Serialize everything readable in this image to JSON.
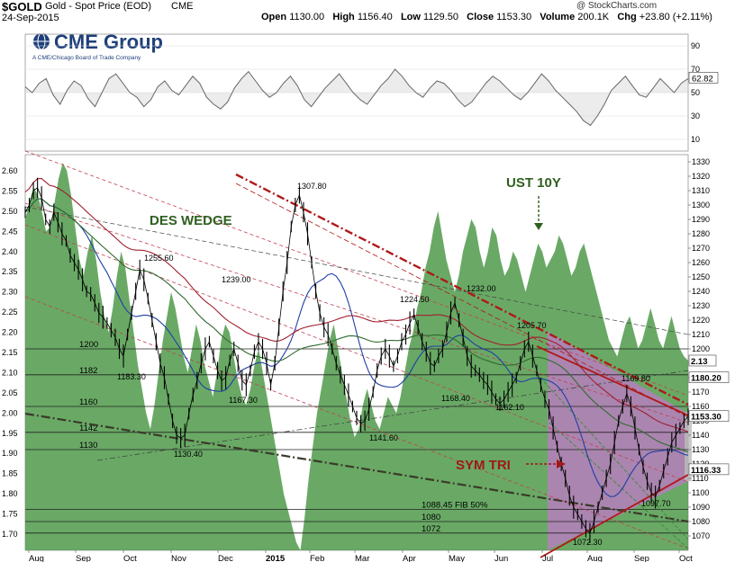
{
  "header": {
    "symbol": "$GOLD",
    "name": "Gold - Spot Price (EOD)",
    "exchange": "CME",
    "date": "24-Sep-2015",
    "open_label": "Open",
    "open": "1130.00",
    "high_label": "High",
    "high": "1156.40",
    "low_label": "Low",
    "low": "1129.50",
    "close_label": "Close",
    "close": "1153.30",
    "volume_label": "Volume",
    "volume": "200.1K",
    "chg_label": "Chg",
    "chg": "+23.80 (+2.11%)",
    "watermark": "@ StockCharts.com"
  },
  "logo": {
    "brand": "CME Group",
    "tagline": "A CME/Chicago Board of Trade Company"
  },
  "colors": {
    "price": "#000000",
    "yield_fill": "#4f9a4a",
    "ma_blue": "#1f3fa8",
    "ma_green": "#2f6b2f",
    "ma_red": "#a02030",
    "trend_dark": "#3a3a2a",
    "triangle_fill": "#c07ac8",
    "annotation_green": "#2f5f1f",
    "annotation_red": "#a01818"
  },
  "chart_data": [
    {
      "type": "line",
      "name": "rsi-panel",
      "yticks": [
        10,
        30,
        50,
        70,
        90
      ],
      "ylim": [
        0,
        100
      ],
      "last_value": "62.82",
      "series": [
        {
          "values": [
            55,
            50,
            58,
            62,
            48,
            40,
            52,
            60,
            56,
            45,
            38,
            50,
            62,
            66,
            58,
            50,
            46,
            38,
            44,
            55,
            60,
            52,
            48,
            56,
            64,
            58,
            46,
            40,
            36,
            42,
            54,
            62,
            68,
            60,
            52,
            46,
            50,
            58,
            64,
            56,
            44,
            38,
            46,
            54,
            60,
            66,
            58,
            50,
            44,
            40,
            48,
            56,
            62,
            70,
            64,
            56,
            50,
            46,
            54,
            60,
            58,
            52,
            44,
            38,
            42,
            50,
            58,
            64,
            60,
            54,
            48,
            44,
            50,
            58,
            66,
            60,
            52,
            46,
            40,
            34,
            26,
            22,
            30,
            40,
            52,
            58,
            64,
            56,
            48,
            46,
            54,
            62,
            56,
            50,
            58,
            62
          ]
        }
      ]
    },
    {
      "type": "line",
      "name": "price-panel",
      "x_labels": [
        "Aug",
        "Sep",
        "Oct",
        "Nov",
        "Dec",
        "2015",
        "Feb",
        "Mar",
        "Apr",
        "May",
        "Jun",
        "Jul",
        "Aug",
        "Sep",
        "Oct"
      ],
      "ylim": [
        1060,
        1335
      ],
      "yticks_right": [
        1070,
        1080,
        1090,
        1100,
        1110,
        1120,
        1130,
        1140,
        1150,
        1160,
        1170,
        1180,
        1190,
        1200,
        1210,
        1220,
        1230,
        1240,
        1250,
        1260,
        1270,
        1280,
        1290,
        1300,
        1310,
        1320,
        1330
      ],
      "yticks_left": [
        "2.60",
        "2.55",
        "2.50",
        "2.45",
        "2.40",
        "2.35",
        "2.30",
        "2.25",
        "2.20",
        "2.15",
        "2.10",
        "2.05",
        "2.00",
        "1.95",
        "1.90",
        "1.85",
        "1.80",
        "1.75",
        "1.70"
      ],
      "left_ylim": [
        1.66,
        2.64
      ],
      "last_close_label": "1153.30",
      "right_markers": [
        "1180.20",
        "1116.33"
      ],
      "left_marker": "2.13",
      "price": [
        1295,
        1300,
        1310,
        1312,
        1305,
        1290,
        1285,
        1295,
        1288,
        1280,
        1275,
        1265,
        1260,
        1255,
        1248,
        1240,
        1238,
        1232,
        1225,
        1222,
        1218,
        1213,
        1208,
        1200,
        1195,
        1210,
        1225,
        1240,
        1255,
        1248,
        1235,
        1220,
        1205,
        1190,
        1180,
        1165,
        1150,
        1140,
        1138,
        1140,
        1155,
        1168,
        1178,
        1190,
        1200,
        1205,
        1195,
        1185,
        1178,
        1180,
        1192,
        1200,
        1190,
        1178,
        1175,
        1185,
        1198,
        1205,
        1200,
        1190,
        1175,
        1190,
        1215,
        1240,
        1260,
        1285,
        1300,
        1307,
        1295,
        1280,
        1260,
        1240,
        1225,
        1215,
        1210,
        1200,
        1190,
        1182,
        1175,
        1168,
        1160,
        1152,
        1148,
        1150,
        1158,
        1170,
        1185,
        1195,
        1200,
        1195,
        1188,
        1195,
        1205,
        1210,
        1218,
        1224,
        1215,
        1205,
        1198,
        1190,
        1188,
        1195,
        1200,
        1212,
        1225,
        1232,
        1220,
        1208,
        1195,
        1188,
        1185,
        1182,
        1178,
        1175,
        1170,
        1165,
        1162,
        1165,
        1170,
        1175,
        1180,
        1190,
        1200,
        1205,
        1195,
        1185,
        1175,
        1165,
        1158,
        1145,
        1132,
        1120,
        1110,
        1098,
        1090,
        1085,
        1080,
        1075,
        1072,
        1080,
        1090,
        1100,
        1110,
        1120,
        1135,
        1150,
        1160,
        1169,
        1160,
        1145,
        1130,
        1118,
        1108,
        1100,
        1097,
        1105,
        1115,
        1125,
        1135,
        1140,
        1145,
        1150,
        1153
      ],
      "yield": [
        2.48,
        2.52,
        2.56,
        2.54,
        2.5,
        2.45,
        2.46,
        2.52,
        2.58,
        2.62,
        2.6,
        2.54,
        2.46,
        2.38,
        2.34,
        2.4,
        2.44,
        2.38,
        2.3,
        2.24,
        2.2,
        2.26,
        2.34,
        2.4,
        2.36,
        2.28,
        2.2,
        2.12,
        2.06,
        2.0,
        1.96,
        2.02,
        2.1,
        2.18,
        2.24,
        2.3,
        2.26,
        2.2,
        2.14,
        2.1,
        2.16,
        2.22,
        2.18,
        2.12,
        2.08,
        2.04,
        2.1,
        2.18,
        2.22,
        2.2,
        2.14,
        2.08,
        2.04,
        2.02,
        2.06,
        2.12,
        2.16,
        2.1,
        2.04,
        1.98,
        1.92,
        1.86,
        1.8,
        1.76,
        1.72,
        1.68,
        1.66,
        1.74,
        1.84,
        1.92,
        2.0,
        2.06,
        2.12,
        2.18,
        2.22,
        2.16,
        2.1,
        2.04,
        1.98,
        1.94,
        1.96,
        2.02,
        2.06,
        2.02,
        1.98,
        1.96,
        2.0,
        2.04,
        2.02,
        2.0,
        2.04,
        2.1,
        2.16,
        2.2,
        2.26,
        2.3,
        2.36,
        2.4,
        2.46,
        2.5,
        2.44,
        2.38,
        2.34,
        2.3,
        2.34,
        2.4,
        2.44,
        2.48,
        2.46,
        2.4,
        2.36,
        2.4,
        2.46,
        2.44,
        2.38,
        2.34,
        2.36,
        2.4,
        2.38,
        2.34,
        2.3,
        2.34,
        2.38,
        2.42,
        2.4,
        2.36,
        2.38,
        2.4,
        2.44,
        2.42,
        2.38,
        2.34,
        2.36,
        2.4,
        2.42,
        2.38,
        2.34,
        2.3,
        2.26,
        2.22,
        2.18,
        2.16,
        2.14,
        2.18,
        2.22,
        2.24,
        2.2,
        2.16,
        2.18,
        2.22,
        2.26,
        2.22,
        2.18,
        2.16,
        2.2,
        2.24,
        2.2,
        2.16,
        2.14,
        2.13
      ]
    }
  ],
  "price_annotations": [
    {
      "label": "1307.80",
      "value": 1307.8
    },
    {
      "label": "1255.60",
      "value": 1255.6
    },
    {
      "label": "1239.00",
      "value": 1239.0
    },
    {
      "label": "1232.00",
      "value": 1232.0
    },
    {
      "label": "1224.50",
      "value": 1224.5
    },
    {
      "label": "1205.70",
      "value": 1205.7
    },
    {
      "label": "1183.30",
      "value": 1183.3
    },
    {
      "label": "1169.80",
      "value": 1169.8
    },
    {
      "label": "1168.40",
      "value": 1168.4
    },
    {
      "label": "1167.30",
      "value": 1167.3
    },
    {
      "label": "1162.10",
      "value": 1162.1
    },
    {
      "label": "1141.60",
      "value": 1141.6
    },
    {
      "label": "1130.40",
      "value": 1130.4
    },
    {
      "label": "1097.70",
      "value": 1097.7
    },
    {
      "label": "1072.30",
      "value": 1072.3
    }
  ],
  "horizontal_levels": [
    {
      "label": "1200",
      "value": 1200
    },
    {
      "label": "1182",
      "value": 1182
    },
    {
      "label": "1160",
      "value": 1160
    },
    {
      "label": "1142",
      "value": 1142
    },
    {
      "label": "1130",
      "value": 1130
    },
    {
      "label": "1088.45  FIB 50%",
      "value": 1088.45
    },
    {
      "label": "1080",
      "value": 1080
    },
    {
      "label": "1072",
      "value": 1072
    }
  ],
  "pattern_labels": {
    "des_wedge": "DES WEDGE",
    "ust_10y": "UST 10Y",
    "sym_tri": "SYM TRI"
  }
}
